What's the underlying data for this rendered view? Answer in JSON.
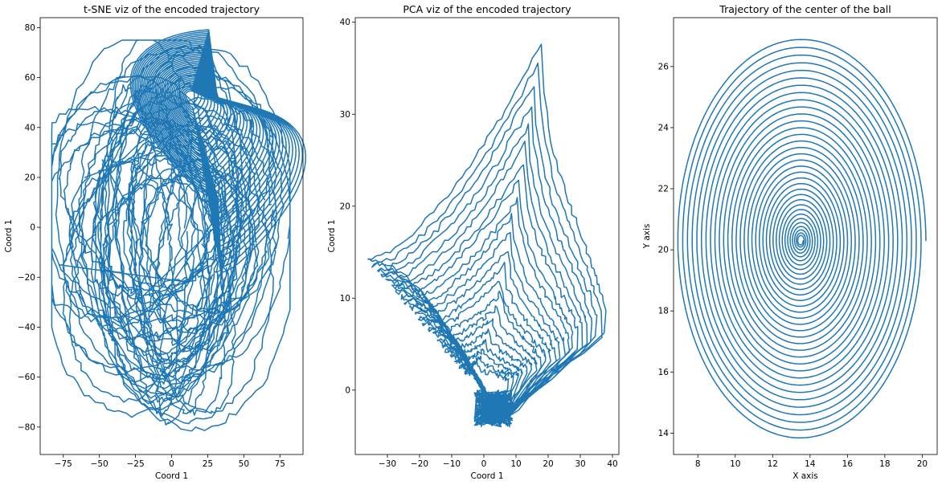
{
  "figure": {
    "line_color": "#1f77b4",
    "background": "#ffffff"
  },
  "chart_data": [
    {
      "type": "line",
      "title": "t-SNE viz of the encoded trajectory",
      "xlabel": "Coord 1",
      "ylabel": "Coord 1",
      "xlim": [
        -91,
        91
      ],
      "ylim": [
        -91,
        84
      ],
      "xticks": [
        -75,
        -50,
        -25,
        0,
        25,
        50,
        75
      ],
      "yticks": [
        -80,
        -60,
        -40,
        -20,
        0,
        20,
        40,
        60,
        80
      ],
      "grid": false,
      "legend": "none",
      "shape": "dense tangled closed loops spanning x -83..82, y -83..75, dense fan near (10, 50)"
    },
    {
      "type": "line",
      "title": "PCA viz of the encoded trajectory",
      "xlabel": "Coord 1",
      "ylabel": "Coord 1",
      "xlim": [
        -40,
        42
      ],
      "ylim": [
        -7,
        40.5
      ],
      "xticks": [
        -30,
        -20,
        -10,
        0,
        10,
        20,
        30,
        40
      ],
      "yticks": [
        0,
        10,
        20,
        30,
        40
      ],
      "grid": false,
      "legend": "none",
      "shape": "nested loops from a dense knot near (3, -2) to a peak near (18, 38) and out to (-37, 11) and (39, 2)"
    },
    {
      "type": "line",
      "title": "Trajectory of the center of the ball",
      "xlabel": "X axis",
      "ylabel": "Y axis",
      "xlim": [
        6.7,
        20.8
      ],
      "ylim": [
        13.3,
        27.6
      ],
      "xticks": [
        8,
        10,
        12,
        14,
        16,
        18,
        20
      ],
      "yticks": [
        14,
        16,
        18,
        20,
        22,
        24,
        26
      ],
      "grid": false,
      "legend": "none",
      "spiral": {
        "center": [
          13.5,
          20.3
        ],
        "outer_rx": 6.7,
        "outer_ry": 6.65,
        "end_x": 20.2,
        "turns": 34
      }
    }
  ]
}
